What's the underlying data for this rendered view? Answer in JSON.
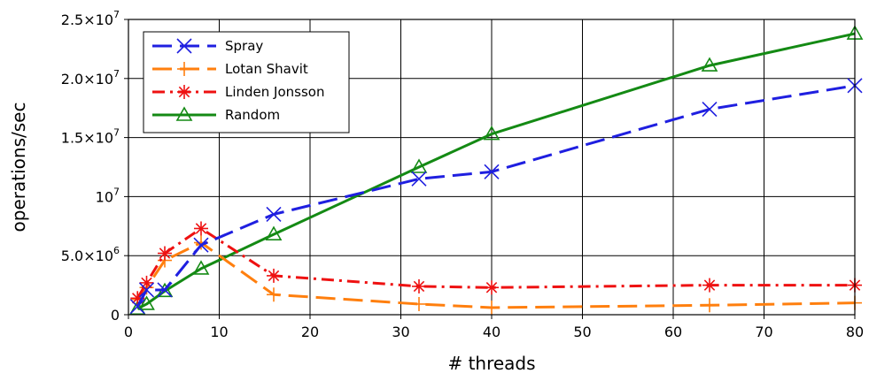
{
  "chart_data": {
    "type": "line",
    "xlabel": "# threads",
    "ylabel": "operations/sec",
    "xlim": [
      0,
      80
    ],
    "ylim": [
      0,
      25000000
    ],
    "x_ticks": [
      0,
      10,
      20,
      30,
      40,
      50,
      60,
      70,
      80
    ],
    "x_tick_labels": [
      "0",
      "10",
      "20",
      "30",
      "40",
      "50",
      "60",
      "70",
      "80"
    ],
    "y_ticks": [
      0,
      5000000,
      10000000,
      15000000,
      20000000,
      25000000
    ],
    "y_tick_labels": [
      {
        "mantissa": "0",
        "exponent": ""
      },
      {
        "mantissa": "5.0×10",
        "exponent": "6"
      },
      {
        "mantissa": "10",
        "exponent": "7"
      },
      {
        "mantissa": "1.5×10",
        "exponent": "7"
      },
      {
        "mantissa": "2.0×10",
        "exponent": "7"
      },
      {
        "mantissa": "2.5×10",
        "exponent": "7"
      }
    ],
    "grid": true,
    "legend_position": "top-left",
    "series": [
      {
        "name": "Spray",
        "color": "#1f1fe0",
        "marker": "x",
        "dash": "dashed",
        "x": [
          1,
          2,
          4,
          8,
          16,
          32,
          40,
          64,
          80
        ],
        "values": [
          700000,
          2100000,
          2100000,
          5900000,
          8500000,
          11500000,
          12100000,
          17400000,
          19400000
        ]
      },
      {
        "name": "Lotan Shavit",
        "color": "#ff7f0e",
        "marker": "plus",
        "dash": "dashed",
        "x": [
          1,
          2,
          4,
          8,
          16,
          32,
          40,
          64,
          80
        ],
        "values": [
          1300000,
          2300000,
          4600000,
          6100000,
          1700000,
          900000,
          600000,
          800000,
          1000000
        ]
      },
      {
        "name": "Linden Jonsson",
        "color": "#ee1111",
        "marker": "star",
        "dash": "dashdot",
        "x": [
          1,
          2,
          4,
          8,
          16,
          32,
          40,
          64,
          80
        ],
        "values": [
          1400000,
          2700000,
          5200000,
          7300000,
          3300000,
          2400000,
          2300000,
          2500000,
          2500000
        ]
      },
      {
        "name": "Random",
        "color": "#148a14",
        "marker": "triangle",
        "dash": "solid",
        "x": [
          1,
          2,
          4,
          8,
          16,
          32,
          40,
          64,
          80
        ],
        "values": [
          500000,
          900000,
          2000000,
          3900000,
          6800000,
          12500000,
          15300000,
          21100000,
          23800000
        ]
      }
    ]
  }
}
